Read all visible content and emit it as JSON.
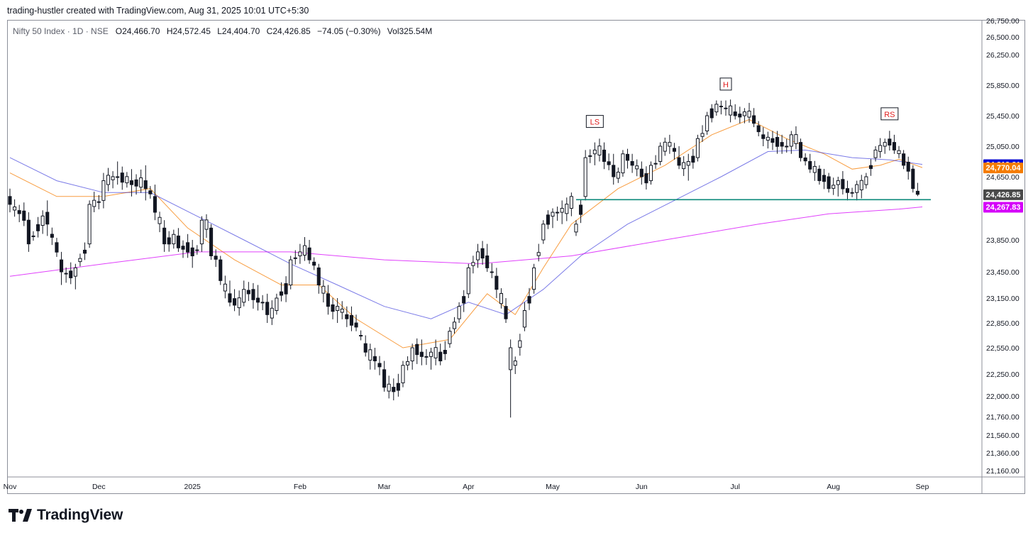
{
  "header": {
    "credit": "trading-hustler created with TradingView.com, Aug 31, 2025 10:01 UTC+5:30"
  },
  "legend": {
    "symbol": "Nifty 50 Index · 1D · NSE",
    "open_key": "O",
    "open": "24,466.70",
    "high_key": "H",
    "high": "24,572.45",
    "low_key": "L",
    "low": "24,404.70",
    "close_key": "C",
    "close": "24,426.85",
    "change": "−74.05 (−0.30%)",
    "vol_key": "Vol",
    "vol": "325.54M"
  },
  "footer": {
    "brand": "TradingView"
  },
  "colors": {
    "ema_blue": "#0d0dd3",
    "ema_orange": "#f57c00",
    "ema_magenta": "#d500f9",
    "price_tag": "#4a4a4a",
    "support_line": "#0b8a7a",
    "candle_up_fill": "#ffffff",
    "candle_down_fill": "#131722",
    "annotation": "#e01e1e"
  },
  "chart_data": {
    "type": "candlestick",
    "title": "Nifty 50 Index · 1D · NSE",
    "ylim": [
      21100,
      26800
    ],
    "y_ticks": [
      "26,750.00",
      "26,500.00",
      "26,250.00",
      "25,850.00",
      "25,450.00",
      "25,050.00",
      "24,650.00",
      "23,850.00",
      "23,450.00",
      "23,150.00",
      "22,850.00",
      "22,550.00",
      "22,250.00",
      "22,000.00",
      "21,760.00",
      "21,560.00",
      "21,360.00",
      "21,160.00"
    ],
    "y_tick_values": [
      26750,
      26500,
      26250,
      25850,
      25450,
      25050,
      24650,
      23850,
      23450,
      23150,
      22850,
      22550,
      22250,
      22000,
      21760,
      21560,
      21360,
      21160
    ],
    "x_labels": [
      "Nov",
      "Dec",
      "2025",
      "Feb",
      "Mar",
      "Apr",
      "May",
      "Jun",
      "Jul",
      "Aug",
      "Sep"
    ],
    "x_label_days": [
      0,
      19,
      39,
      62,
      80,
      98,
      116,
      135,
      155,
      176,
      195
    ],
    "total_days": 195,
    "price_tags": [
      {
        "label": "24,812.21",
        "value": 24812.21,
        "color": "#0d0dd3"
      },
      {
        "label": "24,770.04",
        "value": 24770.04,
        "color": "#f57c00"
      },
      {
        "label": "24,426.85",
        "value": 24426.85,
        "color": "#4a4a4a"
      },
      {
        "label": "24,267.83",
        "value": 24267.83,
        "color": "#d500f9"
      }
    ],
    "support_level": 24360,
    "support_range_days": [
      121,
      195
    ],
    "annotations": [
      {
        "label": "LS",
        "day": 125,
        "value": 25370
      },
      {
        "label": "H",
        "day": 153,
        "value": 25860
      },
      {
        "label": "RS",
        "day": 188,
        "value": 25470
      }
    ],
    "ohlc_anchors": [
      [
        0,
        24400,
        24500,
        24200,
        24300
      ],
      [
        4,
        24100,
        24200,
        23700,
        23800
      ],
      [
        8,
        24200,
        24350,
        23900,
        24050
      ],
      [
        11,
        23600,
        23700,
        23300,
        23450
      ],
      [
        14,
        23400,
        23550,
        23250,
        23500
      ],
      [
        17,
        23800,
        24350,
        23750,
        24300
      ],
      [
        20,
        24350,
        24700,
        24250,
        24600
      ],
      [
        23,
        24650,
        24850,
        24550,
        24650
      ],
      [
        26,
        24600,
        24750,
        24400,
        24550
      ],
      [
        29,
        24600,
        24800,
        24350,
        24500
      ],
      [
        31,
        24400,
        24550,
        24100,
        24200
      ],
      [
        33,
        24000,
        24100,
        23700,
        23800
      ],
      [
        36,
        23900,
        24000,
        23700,
        23750
      ],
      [
        39,
        23750,
        23850,
        23500,
        23650
      ],
      [
        41,
        23800,
        24150,
        23700,
        24100
      ],
      [
        43,
        24000,
        24050,
        23600,
        23650
      ],
      [
        45,
        23600,
        23650,
        23300,
        23350
      ],
      [
        47,
        23200,
        23350,
        23050,
        23100
      ],
      [
        50,
        23100,
        23350,
        23050,
        23250
      ],
      [
        53,
        23150,
        23300,
        23000,
        23100
      ],
      [
        55,
        23100,
        23200,
        22850,
        22950
      ],
      [
        57,
        23000,
        23200,
        22950,
        23150
      ],
      [
        60,
        23300,
        23650,
        23250,
        23600
      ],
      [
        62,
        23650,
        23800,
        23550,
        23700
      ],
      [
        64,
        23750,
        23850,
        23550,
        23600
      ],
      [
        66,
        23500,
        23550,
        23200,
        23300
      ],
      [
        68,
        23200,
        23300,
        22950,
        23050
      ],
      [
        70,
        23000,
        23150,
        22850,
        23050
      ],
      [
        72,
        22950,
        23050,
        22800,
        22900
      ],
      [
        74,
        22850,
        22950,
        22750,
        22800
      ],
      [
        76,
        22600,
        22700,
        22450,
        22500
      ],
      [
        78,
        22450,
        22550,
        22300,
        22400
      ],
      [
        80,
        22300,
        22400,
        22050,
        22100
      ],
      [
        82,
        22100,
        22200,
        21950,
        22050
      ],
      [
        84,
        22150,
        22400,
        22100,
        22350
      ],
      [
        86,
        22400,
        22600,
        22300,
        22550
      ],
      [
        88,
        22500,
        22650,
        22350,
        22450
      ],
      [
        90,
        22450,
        22550,
        22300,
        22500
      ],
      [
        92,
        22500,
        22600,
        22350,
        22400
      ],
      [
        94,
        22600,
        22800,
        22550,
        22750
      ],
      [
        96,
        22900,
        23100,
        22850,
        23050
      ],
      [
        98,
        23200,
        23550,
        23150,
        23500
      ],
      [
        100,
        23600,
        23800,
        23500,
        23700
      ],
      [
        102,
        23650,
        23800,
        23450,
        23500
      ],
      [
        104,
        23400,
        23500,
        23150,
        23250
      ],
      [
        106,
        23050,
        23150,
        22850,
        22900
      ],
      [
        107,
        22300,
        22650,
        21750,
        22550
      ],
      [
        108,
        22350,
        22450,
        22250,
        22400
      ],
      [
        110,
        22800,
        23100,
        22750,
        23000
      ],
      [
        112,
        23250,
        23550,
        23200,
        23500
      ],
      [
        114,
        23850,
        24100,
        23800,
        24050
      ],
      [
        116,
        24150,
        24250,
        24000,
        24200
      ],
      [
        118,
        24200,
        24350,
        24050,
        24250
      ],
      [
        120,
        24250,
        24450,
        24150,
        24400
      ],
      [
        121,
        23950,
        24100,
        23900,
        24050
      ],
      [
        123,
        24400,
        25000,
        24350,
        24900
      ],
      [
        125,
        24950,
        25100,
        24800,
        25000
      ],
      [
        127,
        25000,
        25100,
        24750,
        24850
      ],
      [
        129,
        24800,
        24950,
        24550,
        24650
      ],
      [
        131,
        24700,
        25000,
        24650,
        24950
      ],
      [
        133,
        24850,
        24950,
        24700,
        24800
      ],
      [
        135,
        24750,
        24850,
        24550,
        24650
      ],
      [
        137,
        24600,
        24850,
        24550,
        24800
      ],
      [
        139,
        24850,
        25100,
        24800,
        25050
      ],
      [
        141,
        25050,
        25200,
        24950,
        25100
      ],
      [
        143,
        24900,
        25050,
        24750,
        24800
      ],
      [
        145,
        24800,
        24950,
        24600,
        24850
      ],
      [
        147,
        24900,
        25200,
        24850,
        25150
      ],
      [
        149,
        25250,
        25500,
        25200,
        25450
      ],
      [
        151,
        25500,
        25650,
        25450,
        25600
      ],
      [
        153,
        25550,
        25650,
        25450,
        25550
      ],
      [
        155,
        25500,
        25600,
        25400,
        25450
      ],
      [
        157,
        25450,
        25550,
        25350,
        25500
      ],
      [
        159,
        25450,
        25550,
        25300,
        25350
      ],
      [
        161,
        25200,
        25300,
        25050,
        25150
      ],
      [
        163,
        25150,
        25250,
        25000,
        25100
      ],
      [
        165,
        25100,
        25200,
        24950,
        25050
      ],
      [
        167,
        25050,
        25250,
        24950,
        25200
      ],
      [
        169,
        25100,
        25150,
        24850,
        24900
      ],
      [
        171,
        24850,
        24950,
        24700,
        24750
      ],
      [
        173,
        24750,
        24800,
        24550,
        24600
      ],
      [
        175,
        24650,
        24700,
        24450,
        24500
      ],
      [
        177,
        24550,
        24650,
        24400,
        24600
      ],
      [
        179,
        24500,
        24600,
        24350,
        24450
      ],
      [
        181,
        24450,
        24600,
        24350,
        24550
      ],
      [
        183,
        24550,
        24700,
        24500,
        24650
      ],
      [
        185,
        24900,
        25050,
        24850,
        25000
      ],
      [
        187,
        25050,
        25150,
        24950,
        25100
      ],
      [
        189,
        25100,
        25200,
        24950,
        25000
      ],
      [
        191,
        24950,
        25000,
        24750,
        24800
      ],
      [
        193,
        24750,
        24800,
        24450,
        24500
      ],
      [
        194,
        24466.7,
        24572.45,
        24404.7,
        24426.85
      ]
    ],
    "moving_averages": [
      {
        "color": "#f57c00",
        "points": [
          [
            0,
            24700
          ],
          [
            10,
            24400
          ],
          [
            20,
            24400
          ],
          [
            30,
            24500
          ],
          [
            38,
            24000
          ],
          [
            48,
            23600
          ],
          [
            58,
            23300
          ],
          [
            66,
            23300
          ],
          [
            74,
            22900
          ],
          [
            84,
            22550
          ],
          [
            94,
            22650
          ],
          [
            102,
            23200
          ],
          [
            108,
            22950
          ],
          [
            114,
            23500
          ],
          [
            120,
            24050
          ],
          [
            130,
            24500
          ],
          [
            140,
            24800
          ],
          [
            150,
            25200
          ],
          [
            158,
            25400
          ],
          [
            166,
            25150
          ],
          [
            174,
            24950
          ],
          [
            180,
            24750
          ],
          [
            186,
            24800
          ],
          [
            190,
            24880
          ],
          [
            195,
            24770
          ]
        ]
      },
      {
        "color": "#0d0dd3",
        "points": [
          [
            0,
            24900
          ],
          [
            10,
            24600
          ],
          [
            20,
            24450
          ],
          [
            30,
            24450
          ],
          [
            40,
            24150
          ],
          [
            50,
            23850
          ],
          [
            60,
            23550
          ],
          [
            70,
            23300
          ],
          [
            80,
            23050
          ],
          [
            90,
            22900
          ],
          [
            98,
            23100
          ],
          [
            106,
            22950
          ],
          [
            114,
            23250
          ],
          [
            122,
            23650
          ],
          [
            132,
            24050
          ],
          [
            142,
            24350
          ],
          [
            152,
            24650
          ],
          [
            162,
            24980
          ],
          [
            170,
            25000
          ],
          [
            180,
            24900
          ],
          [
            188,
            24870
          ],
          [
            195,
            24812
          ]
        ]
      },
      {
        "color": "#d500f9",
        "points": [
          [
            0,
            23400
          ],
          [
            20,
            23550
          ],
          [
            40,
            23700
          ],
          [
            60,
            23700
          ],
          [
            80,
            23600
          ],
          [
            100,
            23550
          ],
          [
            120,
            23650
          ],
          [
            140,
            23850
          ],
          [
            160,
            24050
          ],
          [
            175,
            24180
          ],
          [
            190,
            24240
          ],
          [
            195,
            24268
          ]
        ]
      }
    ]
  }
}
